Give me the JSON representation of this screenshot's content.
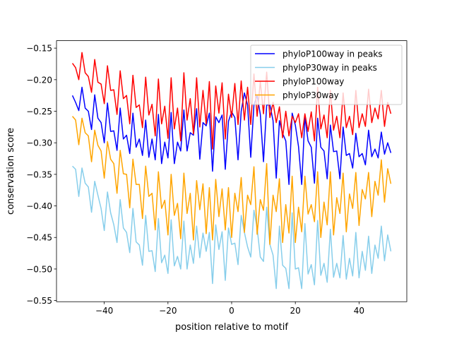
{
  "chart_data": {
    "type": "line",
    "title": "",
    "xlabel": "position relative to motif",
    "ylabel": "conservation score",
    "xlim": [
      -55,
      55
    ],
    "ylim": [
      -0.5518,
      -0.1382
    ],
    "xticks": [
      -40,
      -20,
      0,
      20,
      40
    ],
    "xtick_labels": [
      "−40",
      "−20",
      "0",
      "20",
      "40"
    ],
    "yticks": [
      -0.15,
      -0.2,
      -0.25,
      -0.3,
      -0.35,
      -0.4,
      -0.45,
      -0.5,
      -0.55
    ],
    "ytick_labels": [
      "−0.15",
      "−0.20",
      "−0.25",
      "−0.30",
      "−0.35",
      "−0.40",
      "−0.45",
      "−0.50",
      "−0.55"
    ],
    "grid": false,
    "legend_position": "top-right",
    "x": {
      "start": -50,
      "end": 50,
      "step": 1
    },
    "series": [
      {
        "name": "phyloP100way in peaks",
        "color": "#0000ff",
        "values": [
          -0.225,
          -0.236,
          -0.249,
          -0.212,
          -0.245,
          -0.25,
          -0.279,
          -0.224,
          -0.261,
          -0.268,
          -0.3,
          -0.237,
          -0.282,
          -0.281,
          -0.312,
          -0.245,
          -0.294,
          -0.288,
          -0.317,
          -0.253,
          -0.307,
          -0.294,
          -0.32,
          -0.264,
          -0.323,
          -0.294,
          -0.327,
          -0.255,
          -0.333,
          -0.299,
          -0.324,
          -0.252,
          -0.333,
          -0.299,
          -0.313,
          -0.248,
          -0.313,
          -0.284,
          -0.288,
          -0.246,
          -0.326,
          -0.268,
          -0.273,
          -0.253,
          -0.345,
          -0.259,
          -0.268,
          -0.256,
          -0.342,
          -0.266,
          -0.251,
          -0.26,
          -0.327,
          -0.25,
          -0.221,
          -0.24,
          -0.323,
          -0.24,
          -0.225,
          -0.255,
          -0.33,
          -0.24,
          -0.24,
          -0.265,
          -0.356,
          -0.265,
          -0.285,
          -0.297,
          -0.366,
          -0.253,
          -0.272,
          -0.306,
          -0.366,
          -0.259,
          -0.297,
          -0.307,
          -0.364,
          -0.261,
          -0.307,
          -0.313,
          -0.357,
          -0.272,
          -0.314,
          -0.313,
          -0.357,
          -0.275,
          -0.32,
          -0.317,
          -0.34,
          -0.285,
          -0.322,
          -0.317,
          -0.335,
          -0.28,
          -0.322,
          -0.31,
          -0.324,
          -0.283,
          -0.318,
          -0.3,
          -0.316
        ]
      },
      {
        "name": "phyloP30way in peaks",
        "color": "#87ceeb",
        "values": [
          -0.337,
          -0.342,
          -0.385,
          -0.34,
          -0.364,
          -0.37,
          -0.41,
          -0.361,
          -0.383,
          -0.404,
          -0.439,
          -0.378,
          -0.411,
          -0.43,
          -0.458,
          -0.39,
          -0.435,
          -0.442,
          -0.474,
          -0.404,
          -0.457,
          -0.462,
          -0.494,
          -0.415,
          -0.472,
          -0.471,
          -0.504,
          -0.42,
          -0.49,
          -0.478,
          -0.507,
          -0.422,
          -0.495,
          -0.48,
          -0.5,
          -0.424,
          -0.5,
          -0.462,
          -0.491,
          -0.432,
          -0.482,
          -0.443,
          -0.472,
          -0.442,
          -0.523,
          -0.43,
          -0.469,
          -0.441,
          -0.518,
          -0.435,
          -0.461,
          -0.459,
          -0.493,
          -0.415,
          -0.442,
          -0.465,
          -0.481,
          -0.407,
          -0.435,
          -0.481,
          -0.488,
          -0.402,
          -0.461,
          -0.478,
          -0.531,
          -0.432,
          -0.494,
          -0.499,
          -0.531,
          -0.411,
          -0.5,
          -0.498,
          -0.531,
          -0.428,
          -0.508,
          -0.493,
          -0.525,
          -0.423,
          -0.51,
          -0.491,
          -0.521,
          -0.437,
          -0.513,
          -0.491,
          -0.514,
          -0.447,
          -0.516,
          -0.483,
          -0.511,
          -0.442,
          -0.514,
          -0.472,
          -0.502,
          -0.448,
          -0.507,
          -0.462,
          -0.483,
          -0.432,
          -0.487,
          -0.446,
          -0.472
        ]
      },
      {
        "name": "phyloP100way",
        "color": "#ff0000",
        "values": [
          -0.174,
          -0.181,
          -0.2,
          -0.157,
          -0.189,
          -0.195,
          -0.22,
          -0.168,
          -0.204,
          -0.207,
          -0.238,
          -0.178,
          -0.217,
          -0.216,
          -0.255,
          -0.186,
          -0.23,
          -0.225,
          -0.27,
          -0.193,
          -0.244,
          -0.24,
          -0.276,
          -0.196,
          -0.256,
          -0.239,
          -0.289,
          -0.199,
          -0.27,
          -0.242,
          -0.293,
          -0.197,
          -0.278,
          -0.245,
          -0.297,
          -0.189,
          -0.264,
          -0.23,
          -0.286,
          -0.197,
          -0.275,
          -0.217,
          -0.27,
          -0.203,
          -0.31,
          -0.21,
          -0.253,
          -0.205,
          -0.294,
          -0.223,
          -0.26,
          -0.206,
          -0.271,
          -0.202,
          -0.264,
          -0.212,
          -0.271,
          -0.191,
          -0.258,
          -0.203,
          -0.254,
          -0.188,
          -0.26,
          -0.236,
          -0.268,
          -0.243,
          -0.292,
          -0.25,
          -0.289,
          -0.258,
          -0.268,
          -0.254,
          -0.292,
          -0.254,
          -0.282,
          -0.251,
          -0.297,
          -0.212,
          -0.278,
          -0.256,
          -0.292,
          -0.217,
          -0.28,
          -0.258,
          -0.292,
          -0.221,
          -0.276,
          -0.258,
          -0.287,
          -0.217,
          -0.276,
          -0.254,
          -0.274,
          -0.215,
          -0.268,
          -0.245,
          -0.262,
          -0.217,
          -0.274,
          -0.236,
          -0.254
        ]
      },
      {
        "name": "phyloP30way",
        "color": "#ffa500",
        "values": [
          -0.258,
          -0.264,
          -0.303,
          -0.261,
          -0.284,
          -0.289,
          -0.33,
          -0.28,
          -0.304,
          -0.313,
          -0.356,
          -0.298,
          -0.326,
          -0.333,
          -0.38,
          -0.312,
          -0.349,
          -0.35,
          -0.403,
          -0.326,
          -0.366,
          -0.366,
          -0.42,
          -0.337,
          -0.385,
          -0.38,
          -0.438,
          -0.346,
          -0.404,
          -0.391,
          -0.446,
          -0.35,
          -0.415,
          -0.396,
          -0.452,
          -0.348,
          -0.412,
          -0.38,
          -0.454,
          -0.36,
          -0.406,
          -0.365,
          -0.444,
          -0.371,
          -0.454,
          -0.358,
          -0.417,
          -0.373,
          -0.438,
          -0.371,
          -0.45,
          -0.38,
          -0.409,
          -0.355,
          -0.442,
          -0.383,
          -0.398,
          -0.338,
          -0.445,
          -0.39,
          -0.407,
          -0.333,
          -0.461,
          -0.383,
          -0.409,
          -0.357,
          -0.458,
          -0.398,
          -0.443,
          -0.353,
          -0.458,
          -0.402,
          -0.441,
          -0.353,
          -0.413,
          -0.398,
          -0.425,
          -0.346,
          -0.45,
          -0.394,
          -0.43,
          -0.346,
          -0.446,
          -0.387,
          -0.412,
          -0.348,
          -0.441,
          -0.381,
          -0.404,
          -0.347,
          -0.431,
          -0.374,
          -0.389,
          -0.347,
          -0.417,
          -0.361,
          -0.383,
          -0.327,
          -0.394,
          -0.341,
          -0.365
        ]
      }
    ]
  }
}
